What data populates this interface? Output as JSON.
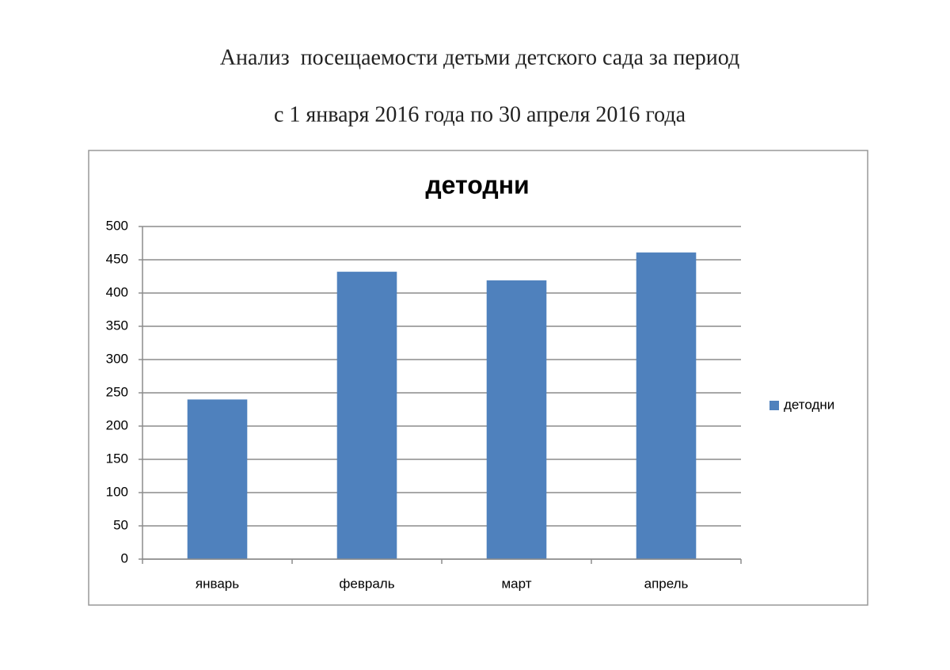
{
  "header": {
    "line1": "Анализ  посещаемости детьми детского сада за период",
    "line2": "с 1 января 2016 года по 30 апреля 2016 года"
  },
  "chart_data": {
    "type": "bar",
    "title": "детодни",
    "categories": [
      "январь",
      "февраль",
      "март",
      "апрель"
    ],
    "series": [
      {
        "name": "детодни",
        "color": "#4f81bd",
        "values": [
          240,
          432,
          419,
          461
        ]
      }
    ],
    "ylim": [
      0,
      500
    ],
    "yticks": [
      0,
      50,
      100,
      150,
      200,
      250,
      300,
      350,
      400,
      450,
      500
    ],
    "grid": true,
    "legend": "right"
  }
}
